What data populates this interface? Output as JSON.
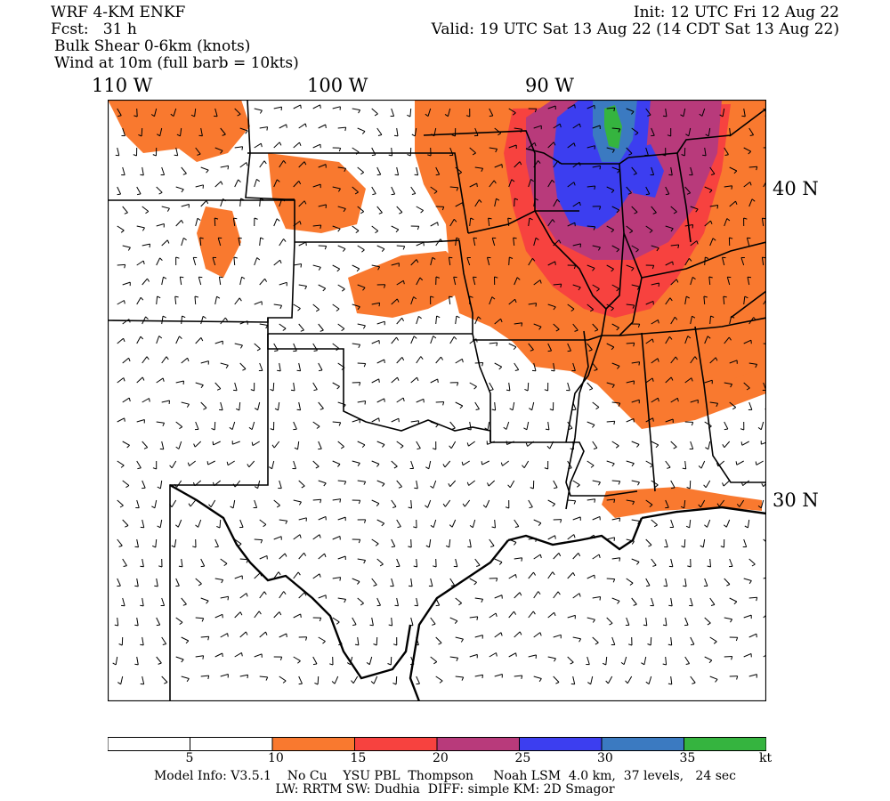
{
  "header": {
    "model": "WRF 4-KM ENKF",
    "fcst": "Fcst:   31 h",
    "field1": "Bulk Shear 0-6km (knots)",
    "field2": "Wind at 10m (full barb = 10kts)",
    "init": "Init: 12 UTC Fri 12 Aug 22",
    "valid": "Valid: 19 UTC Sat 13 Aug 22 (14 CDT Sat 13 Aug 22)"
  },
  "axes": {
    "lon_labels": [
      "110 W",
      "100 W",
      "90 W"
    ],
    "lat_labels": [
      "40 N",
      "30 N"
    ]
  },
  "legend": {
    "colors": [
      "#ffffff",
      "#ffffff",
      "#f9792f",
      "#f7423f",
      "#b83a7b",
      "#3c3ef0",
      "#3b7ac1",
      "#35b43f"
    ],
    "ticks": [
      "5",
      "10",
      "15",
      "20",
      "25",
      "30",
      "35",
      "kt"
    ]
  },
  "model_info": {
    "line1": "Model Info: V3.5.1    No Cu    YSU PBL  Thompson     Noah LSM  4.0 km,  37 levels,   24 sec",
    "line2": "LW: RRTM SW: Dudhia  DIFF: simple KM: 2D Smagor"
  }
}
